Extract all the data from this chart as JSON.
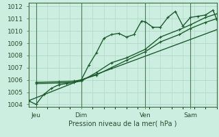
{
  "xlabel": "Pression niveau de la mer( hPa )",
  "background_color": "#cceee0",
  "grid_color": "#aad4c0",
  "line_color": "#1a5c2a",
  "ylim": [
    1003.8,
    1012.3
  ],
  "xlim": [
    0,
    100
  ],
  "yticks": [
    1004,
    1005,
    1006,
    1007,
    1008,
    1009,
    1010,
    1011,
    1012
  ],
  "xtick_positions": [
    4,
    28,
    62,
    86
  ],
  "xtick_labels": [
    "Jeu",
    "Dim",
    "Ven",
    "Sam"
  ],
  "vline_positions": [
    4,
    28,
    62,
    86
  ],
  "series1_x": [
    0,
    4,
    8,
    12,
    16,
    20,
    24,
    28,
    32,
    36,
    40,
    44,
    48,
    52,
    56,
    60,
    62,
    66,
    70,
    74,
    78,
    82,
    86,
    90,
    94,
    98,
    100
  ],
  "series1_y": [
    1004.3,
    1004.0,
    1004.8,
    1005.3,
    1005.6,
    1005.7,
    1005.8,
    1006.0,
    1007.2,
    1008.2,
    1009.4,
    1009.7,
    1009.8,
    1009.5,
    1009.7,
    1010.8,
    1010.75,
    1010.3,
    1010.3,
    1011.1,
    1011.6,
    1010.4,
    1011.1,
    1011.2,
    1011.3,
    1011.7,
    1010.9
  ],
  "series2_x": [
    4,
    16,
    24,
    28,
    36,
    44,
    52,
    62,
    70,
    80,
    86,
    94,
    100
  ],
  "series2_y": [
    1005.7,
    1005.75,
    1005.8,
    1005.9,
    1006.6,
    1007.4,
    1007.8,
    1008.5,
    1009.5,
    1010.1,
    1010.5,
    1011.1,
    1011.4
  ],
  "series3_x": [
    4,
    16,
    24,
    28,
    36,
    44,
    52,
    62,
    70,
    80,
    86,
    94,
    100
  ],
  "series3_y": [
    1005.8,
    1005.85,
    1005.9,
    1006.0,
    1006.4,
    1007.0,
    1007.6,
    1008.3,
    1009.1,
    1009.7,
    1010.2,
    1010.7,
    1011.0
  ],
  "series4_x": [
    0,
    28,
    100
  ],
  "series4_y": [
    1004.3,
    1006.0,
    1010.1
  ]
}
